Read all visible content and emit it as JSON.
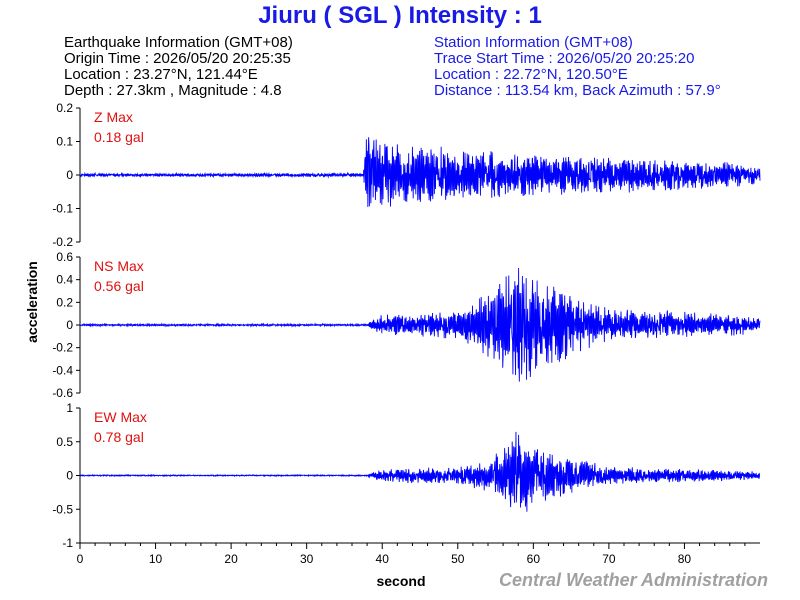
{
  "header": {
    "title": "Jiuru ( SGL ) Intensity : 1"
  },
  "earthquake_info": {
    "heading": "Earthquake Information  (GMT+08)",
    "origin_time": "Origin Time : 2026/05/20 20:25:35",
    "location": "Location : 23.27°N, 121.44°E",
    "depth_magnitude": "Depth : 27.3km , Magnitude : 4.8"
  },
  "station_info": {
    "heading": "Station Information  (GMT+08)",
    "trace_start": "Trace Start Time : 2026/05/20 20:25:20",
    "location": "Location : 22.72°N, 120.50°E",
    "distance": "Distance : 113.54 km, Back Azimuth : 57.9°"
  },
  "credit": "Central Weather Administration",
  "colors": {
    "title": "#1a1ae6",
    "trace": "#0000ff",
    "max_label": "#e01010",
    "credit": "#a0a0a0"
  },
  "chart_data": [
    {
      "type": "line",
      "component": "Z",
      "max_label": "Z Max",
      "max_value": "0.18 gal",
      "xlim": [
        0,
        90
      ],
      "ylim": [
        -0.2,
        0.2
      ],
      "yticks": [
        0.2,
        0.1,
        0,
        -0.1,
        -0.2
      ],
      "ytick_labels": [
        "0.2",
        "0.1",
        "0",
        "-0.1",
        "-0.2"
      ],
      "envelope": {
        "x": [
          0,
          37.5,
          38,
          39,
          40,
          45,
          55,
          65,
          75,
          85,
          90
        ],
        "amplitude": [
          0.005,
          0.006,
          0.18,
          0.12,
          0.1,
          0.09,
          0.07,
          0.06,
          0.05,
          0.04,
          0.03
        ]
      }
    },
    {
      "type": "line",
      "component": "NS",
      "max_label": "NS Max",
      "max_value": "0.56 gal",
      "xlim": [
        0,
        90
      ],
      "ylim": [
        -0.6,
        0.6
      ],
      "yticks": [
        0.6,
        0.4,
        0.2,
        0,
        -0.2,
        -0.4,
        -0.6
      ],
      "ytick_labels": [
        "0.6",
        "0.4",
        "0.2",
        "0",
        "-0.2",
        "-0.4",
        "-0.6"
      ],
      "envelope": {
        "x": [
          0,
          38,
          40,
          45,
          50,
          53,
          58,
          62,
          66,
          70,
          75,
          80,
          85,
          90
        ],
        "amplitude": [
          0.01,
          0.01,
          0.1,
          0.12,
          0.12,
          0.25,
          0.56,
          0.4,
          0.25,
          0.15,
          0.14,
          0.12,
          0.1,
          0.08
        ]
      }
    },
    {
      "type": "line",
      "component": "EW",
      "max_label": "EW Max",
      "max_value": "0.78 gal",
      "xlim": [
        0,
        90
      ],
      "ylim": [
        -1,
        1
      ],
      "yticks": [
        1,
        0.5,
        0,
        -0.5,
        -1
      ],
      "ytick_labels": [
        "1",
        "0.5",
        "0",
        "-0.5",
        "-1"
      ],
      "envelope": {
        "x": [
          0,
          38,
          40,
          45,
          50,
          54,
          57,
          58,
          60,
          64,
          70,
          75,
          80,
          85,
          90
        ],
        "amplitude": [
          0.01,
          0.01,
          0.1,
          0.12,
          0.12,
          0.25,
          0.5,
          0.78,
          0.45,
          0.3,
          0.15,
          0.12,
          0.1,
          0.08,
          0.06
        ]
      }
    }
  ],
  "x_axis": {
    "label": "second",
    "ticks": [
      0,
      10,
      20,
      30,
      40,
      50,
      60,
      70,
      80
    ],
    "tick_labels": [
      "0",
      "10",
      "20",
      "30",
      "40",
      "50",
      "60",
      "70",
      "80"
    ]
  },
  "y_axis": {
    "label": "acceleration"
  }
}
